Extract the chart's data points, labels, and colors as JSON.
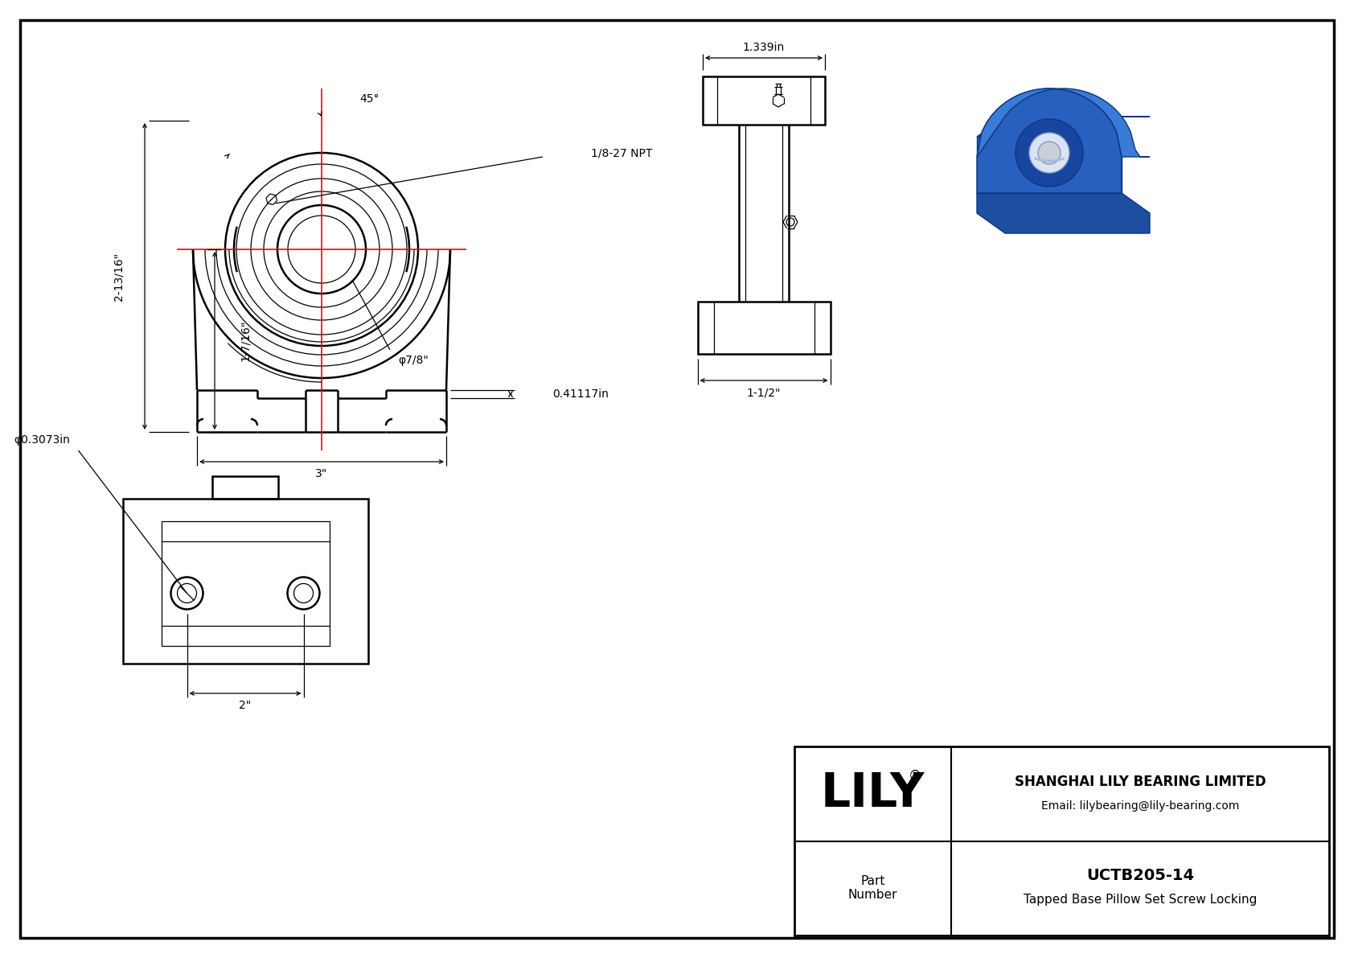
{
  "bg_color": "#ffffff",
  "line_color": "#000000",
  "centerline_color": "#ff0000",
  "title_box": {
    "lily_text": "LILY",
    "registered": "®",
    "company": "SHANGHAI LILY BEARING LIMITED",
    "email": "Email: lilybearing@lily-bearing.com",
    "part_label": "Part\nNumber",
    "part_number": "UCTB205-14",
    "part_desc": "Tapped Base Pillow Set Screw Locking"
  },
  "dims": {
    "angle_45": "45°",
    "npt": "1/8-27 NPT",
    "height_total": "2-13/16\"",
    "height_bore": "1-7/16\"",
    "width_top": "1.339in",
    "width_base": "1-1/2\"",
    "slot_height": "0.41117in",
    "bore_dia": "φ7/8\"",
    "base_width": "3\"",
    "bottom_width": "2\"",
    "hole_dia": "φ0.3073in"
  }
}
